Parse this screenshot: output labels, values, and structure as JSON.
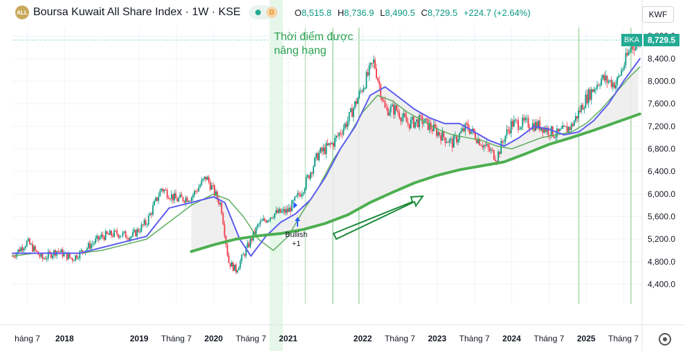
{
  "header": {
    "logo_text": "ALL",
    "title": "Boursa Kuwait All Share Index · 1W · KSE",
    "delay_badge": "D",
    "ohlc": [
      {
        "k": "O",
        "v": "8,515.8"
      },
      {
        "k": "H",
        "v": "8,736.9"
      },
      {
        "k": "L",
        "v": "8,490.5"
      },
      {
        "k": "C",
        "v": "8,729.5"
      }
    ],
    "change": "+224.7 (+2.64%)"
  },
  "currency": "KWF",
  "annotation": {
    "line1": "Thời điểm được",
    "line2": "nâng hạng"
  },
  "bullish": {
    "line1": "Bullish",
    "line2": "+1"
  },
  "last_price": {
    "symbol": "BKA",
    "value": "8,729.5"
  },
  "colors": {
    "up": "#089981",
    "down": "#f23645",
    "accent": "#22ab94",
    "ma_blue": "#5b5bf0",
    "ma_green": "#5cad5c",
    "ma_thick": "#4caf50",
    "band_fill": "#ececec",
    "highlight": "#e6f7ea"
  },
  "chart_data": {
    "type": "line",
    "yticks": [
      4400,
      4800,
      5200,
      5600,
      6000,
      6400,
      6800,
      7200,
      7600,
      8000,
      8400,
      8800
    ],
    "ytick_labels": [
      "4,400.0",
      "4,800.0",
      "5,200.0",
      "5,600.0",
      "6,000.0",
      "6,400.0",
      "6,800.0",
      "7,200.0",
      "7,600.0",
      "8,000.0",
      "8,400.0",
      "8,800.0"
    ],
    "xticks": [
      {
        "t": 2017.5,
        "label": "háng 7",
        "bold": false
      },
      {
        "t": 2018.0,
        "label": "2018",
        "bold": true
      },
      {
        "t": 2019.0,
        "label": "2019",
        "bold": true
      },
      {
        "t": 2019.5,
        "label": "Tháng 7",
        "bold": false
      },
      {
        "t": 2020.0,
        "label": "2020",
        "bold": true
      },
      {
        "t": 2020.5,
        "label": "Tháng 7",
        "bold": false
      },
      {
        "t": 2021.0,
        "label": "2021",
        "bold": true
      },
      {
        "t": 2022.0,
        "label": "2022",
        "bold": true
      },
      {
        "t": 2022.5,
        "label": "Tháng 7",
        "bold": false
      },
      {
        "t": 2023.0,
        "label": "2023",
        "bold": true
      },
      {
        "t": 2023.5,
        "label": "Tháng 7",
        "bold": false
      },
      {
        "t": 2024.0,
        "label": "2024",
        "bold": true
      },
      {
        "t": 2024.5,
        "label": "Tháng 7",
        "bold": false
      },
      {
        "t": 2025.0,
        "label": "2025",
        "bold": true
      },
      {
        "t": 2025.5,
        "label": "Tháng 7",
        "bold": false
      }
    ],
    "xlim": [
      2017.3,
      2025.75
    ],
    "ylim": [
      4050,
      8950
    ],
    "last_close": 8729.5,
    "price": {
      "x": [
        2017.3,
        2017.5,
        2017.7,
        2017.9,
        2018.1,
        2018.3,
        2018.5,
        2018.7,
        2018.9,
        2019.1,
        2019.3,
        2019.5,
        2019.7,
        2019.9,
        2020.1,
        2020.2,
        2020.3,
        2020.45,
        2020.6,
        2020.8,
        2021.0,
        2021.2,
        2021.4,
        2021.6,
        2021.8,
        2022.0,
        2022.15,
        2022.3,
        2022.45,
        2022.6,
        2022.8,
        2023.0,
        2023.2,
        2023.4,
        2023.6,
        2023.8,
        2023.9,
        2024.0,
        2024.2,
        2024.4,
        2024.6,
        2024.8,
        2025.0,
        2025.2,
        2025.4,
        2025.6,
        2025.72
      ],
      "y": [
        4900,
        5150,
        4850,
        5000,
        4850,
        5050,
        5250,
        5300,
        5250,
        5500,
        6100,
        5900,
        5950,
        6300,
        5800,
        4800,
        4650,
        5050,
        5450,
        5650,
        5700,
        6100,
        6700,
        6900,
        7300,
        7900,
        8350,
        7500,
        7500,
        7250,
        7300,
        7100,
        6900,
        7200,
        6900,
        6650,
        7000,
        7250,
        7250,
        7200,
        7050,
        7200,
        7700,
        8050,
        7950,
        8600,
        8729.5
      ]
    },
    "ma_blue": {
      "x": [
        2017.3,
        2017.6,
        2017.9,
        2018.2,
        2018.5,
        2018.8,
        2019.1,
        2019.4,
        2019.7,
        2020.0,
        2020.15,
        2020.35,
        2020.5,
        2020.7,
        2020.9,
        2021.1,
        2021.3,
        2021.5,
        2021.7,
        2021.9,
        2022.1,
        2022.3,
        2022.5,
        2022.7,
        2022.9,
        2023.1,
        2023.3,
        2023.5,
        2023.7,
        2023.9,
        2024.1,
        2024.3,
        2024.5,
        2024.7,
        2024.9,
        2025.1,
        2025.3,
        2025.5,
        2025.72
      ],
      "y": [
        4950,
        4950,
        4950,
        4950,
        5050,
        5150,
        5250,
        5750,
        5850,
        5950,
        5850,
        5200,
        4900,
        5250,
        5500,
        5650,
        5900,
        6300,
        6800,
        7200,
        7750,
        7900,
        7700,
        7500,
        7350,
        7250,
        7250,
        7100,
        6950,
        6850,
        7000,
        7200,
        7150,
        7050,
        7100,
        7300,
        7600,
        8000,
        8400
      ]
    },
    "ma_green": {
      "x": [
        2017.3,
        2017.6,
        2017.9,
        2018.2,
        2018.5,
        2018.8,
        2019.1,
        2019.4,
        2019.7,
        2020.0,
        2020.2,
        2020.4,
        2020.6,
        2020.8,
        2021.0,
        2021.2,
        2021.4,
        2021.6,
        2021.8,
        2022.0,
        2022.2,
        2022.4,
        2022.6,
        2022.8,
        2023.0,
        2023.2,
        2023.4,
        2023.6,
        2023.8,
        2024.0,
        2024.2,
        2024.4,
        2024.6,
        2024.8,
        2025.0,
        2025.2,
        2025.4,
        2025.6,
        2025.72
      ],
      "y": [
        4900,
        4950,
        4950,
        4950,
        5000,
        5100,
        5200,
        5500,
        5800,
        6000,
        5900,
        5600,
        5200,
        5000,
        5250,
        5700,
        6100,
        6600,
        7000,
        7450,
        7750,
        7650,
        7450,
        7300,
        7150,
        7050,
        7000,
        6950,
        6850,
        6800,
        6900,
        7000,
        7050,
        7100,
        7250,
        7500,
        7800,
        8100,
        8250
      ]
    },
    "ma_thick": {
      "x": [
        2019.7,
        2020.0,
        2020.3,
        2020.6,
        2020.9,
        2021.2,
        2021.5,
        2021.8,
        2022.1,
        2022.4,
        2022.7,
        2023.0,
        2023.3,
        2023.6,
        2023.9,
        2024.2,
        2024.5,
        2024.8,
        2025.1,
        2025.4,
        2025.72
      ],
      "y": [
        4980,
        5100,
        5200,
        5260,
        5300,
        5370,
        5480,
        5630,
        5850,
        6030,
        6200,
        6330,
        6430,
        6500,
        6570,
        6720,
        6880,
        7000,
        7130,
        7270,
        7420
      ]
    },
    "green_vlines": [
      2021.6,
      2021.95,
      2024.9,
      2025.6
    ]
  }
}
